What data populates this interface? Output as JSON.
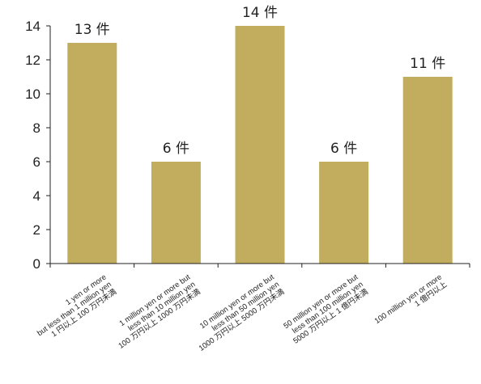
{
  "chart_data": {
    "type": "bar",
    "title": "",
    "xlabel": "",
    "ylabel": "",
    "ylim": [
      0,
      14
    ],
    "yticks": [
      0,
      2,
      4,
      6,
      8,
      10,
      12,
      14
    ],
    "grid": false,
    "legend": "none",
    "bar_color": "#c2ad5f",
    "categories": [
      [
        "1 yen or more",
        "but less than 1 million yen",
        "1 円以上 100 万円未満"
      ],
      [
        "1 million yen or more but",
        "less than 10 million yen",
        "100 万円以上 1000 万円未満"
      ],
      [
        "10 million yen or more but",
        "less than 50 million yen",
        "1000 万円以上 5000 万円未満"
      ],
      [
        "50 million yen or more but",
        "less than 100 million yen",
        "5000 万円以上 1 億円未満"
      ],
      [
        "100 million yen or more",
        "1 億円以上"
      ]
    ],
    "values": [
      13,
      6,
      14,
      6,
      11
    ],
    "data_labels": [
      "13 件",
      "6 件",
      "14 件",
      "6 件",
      "11 件"
    ]
  }
}
